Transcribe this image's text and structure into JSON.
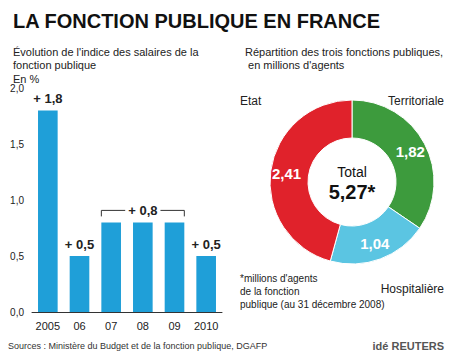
{
  "title": "LA FONCTION PUBLIQUE EN FRANCE",
  "sources": "Sources : Ministère du Budget et de la fonction publique, DGAFP",
  "credit": "idé REUTERS",
  "chart_data": [
    {
      "type": "bar",
      "title": "Évolution de l'indice des salaires de la fonction publique",
      "subtitle": "En %",
      "categories": [
        "2005",
        "06",
        "07",
        "08",
        "09",
        "2010"
      ],
      "values": [
        1.8,
        0.5,
        0.8,
        0.8,
        0.8,
        0.5
      ],
      "value_labels": [
        "+ 1,8",
        "+ 0,5",
        null,
        "+ 0,8",
        null,
        "+ 0,5"
      ],
      "data_labels": true,
      "color": "#1f9fd8",
      "ylim": [
        0,
        2
      ],
      "yticks": [
        {
          "value": 0,
          "label": "0,0"
        },
        {
          "value": 0.5,
          "label": "0,5"
        },
        {
          "value": 1,
          "label": "1,0"
        },
        {
          "value": 1.5,
          "label": "1,5"
        },
        {
          "value": 2,
          "label": "2,0"
        }
      ],
      "grid": false
    },
    {
      "type": "pie",
      "title": "Répartition des trois fonctions publiques, en millions d'agents",
      "categories": [
        "Territoriale",
        "Hospitalière",
        "Etat"
      ],
      "values": [
        1.82,
        1.04,
        2.41
      ],
      "value_labels": [
        "1,82",
        "1,04",
        "2,41"
      ],
      "colors": [
        "#3d9b3d",
        "#5bc5e2",
        "#e0222b"
      ],
      "data_labels": true,
      "total": {
        "label": "Total",
        "value": 5.27,
        "value_label": "5,27*"
      },
      "annotation": "*millions d'agents\nde la fonction\npublique (au 31 décembre 2008)"
    }
  ]
}
